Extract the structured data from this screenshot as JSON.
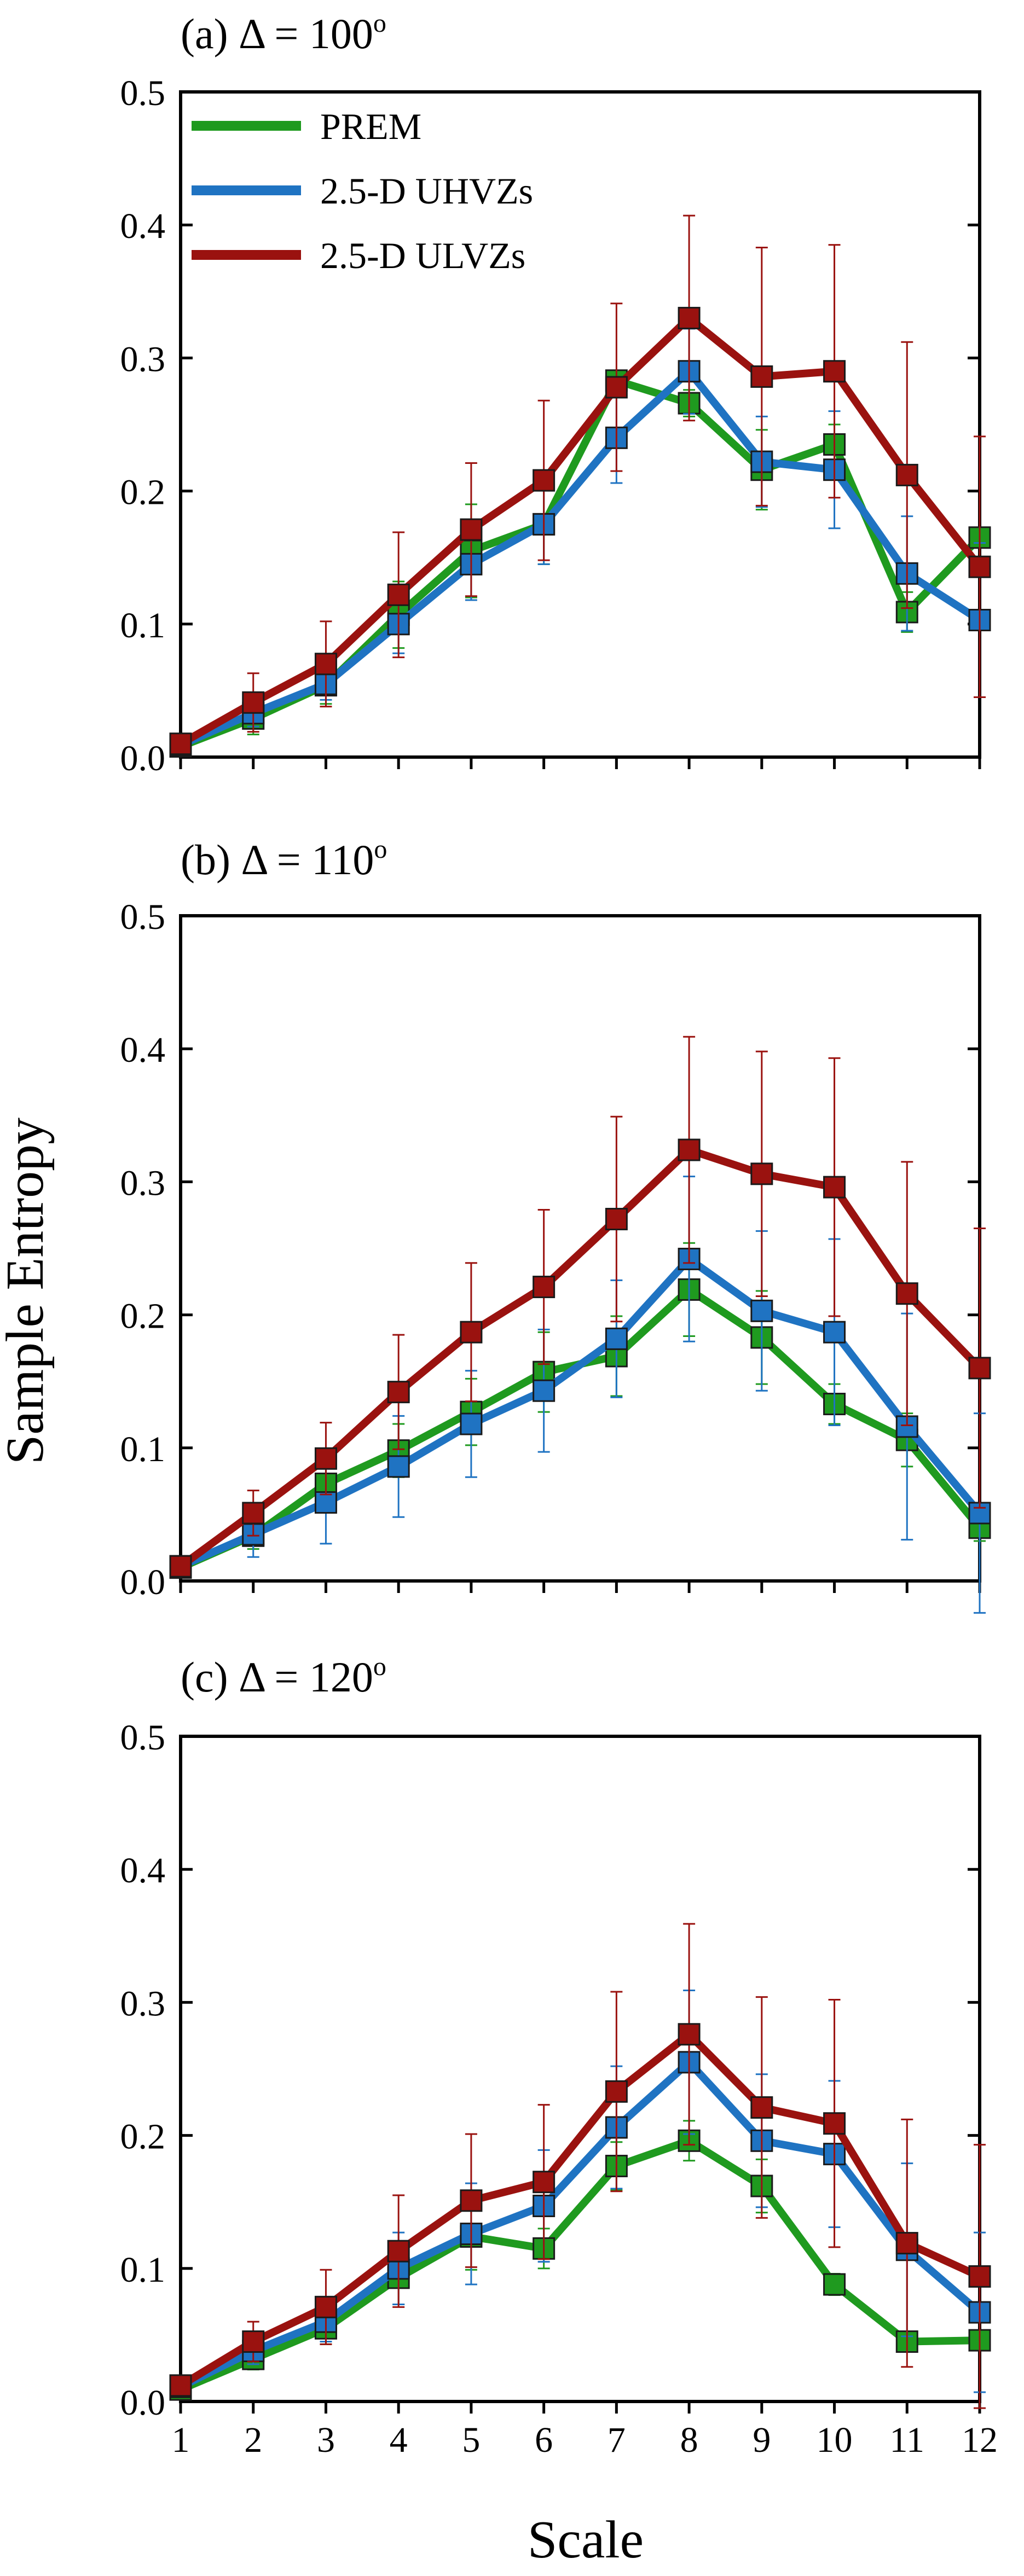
{
  "figure": {
    "ylabel": "Sample Entropy",
    "xlabel": "Scale",
    "x_ticks": [
      "1",
      "2",
      "3",
      "4",
      "5",
      "6",
      "7",
      "8",
      "9",
      "10",
      "11",
      "12"
    ]
  },
  "colors": {
    "PREM": "#1f9a1f",
    "2.5-D UHVZs": "#1f73c2",
    "2.5-D ULVZs": "#9a120f"
  },
  "chart_data": [
    {
      "type": "line",
      "title_prefix": "(a) Δ = 100",
      "title_sup": "o",
      "xlabel": "Scale",
      "ylabel": "Sample Entropy",
      "xlim": [
        1,
        12
      ],
      "ylim": [
        0,
        0.5
      ],
      "y_ticks": [
        "0.0",
        "0.1",
        "0.2",
        "0.3",
        "0.4",
        "0.5"
      ],
      "legend": {
        "position": "top-left",
        "entries": [
          "PREM",
          "2.5-D UHVZs",
          "2.5-D ULVZs"
        ]
      },
      "x": [
        1,
        2,
        3,
        4,
        5,
        6,
        7,
        8,
        9,
        10,
        11,
        12
      ],
      "series": [
        {
          "name": "PREM",
          "values": [
            0.008,
            0.029,
            0.054,
            0.107,
            0.155,
            0.175,
            0.283,
            0.266,
            0.216,
            0.235,
            0.109,
            0.165
          ],
          "err": [
            0.003,
            0.012,
            0.014,
            0.025,
            0.035,
            0.03,
            0.0,
            0.01,
            0.03,
            0.015,
            0.015,
            0.0
          ]
        },
        {
          "name": "2.5-D UHVZs",
          "values": [
            0.009,
            0.033,
            0.055,
            0.1,
            0.145,
            0.175,
            0.24,
            0.29,
            0.222,
            0.216,
            0.138,
            0.103
          ],
          "err": [
            0.003,
            0.01,
            0.012,
            0.022,
            0.027,
            0.03,
            0.034,
            0.032,
            0.034,
            0.044,
            0.043,
            0.058
          ]
        },
        {
          "name": "2.5-D ULVZs",
          "values": [
            0.01,
            0.041,
            0.07,
            0.122,
            0.171,
            0.208,
            0.278,
            0.33,
            0.286,
            0.29,
            0.212,
            0.143
          ],
          "err": [
            0.003,
            0.022,
            0.032,
            0.047,
            0.05,
            0.06,
            0.063,
            0.077,
            0.097,
            0.095,
            0.1,
            0.098
          ]
        }
      ]
    },
    {
      "type": "line",
      "title_prefix": "(b) Δ = 110",
      "title_sup": "o",
      "xlabel": "Scale",
      "ylabel": "Sample Entropy",
      "xlim": [
        1,
        12
      ],
      "ylim": [
        0,
        0.5
      ],
      "y_ticks": [
        "0.0",
        "0.1",
        "0.2",
        "0.3",
        "0.4",
        "0.5"
      ],
      "x": [
        1,
        2,
        3,
        4,
        5,
        6,
        7,
        8,
        9,
        10,
        11,
        12
      ],
      "series": [
        {
          "name": "PREM",
          "values": [
            0.01,
            0.034,
            0.073,
            0.098,
            0.127,
            0.157,
            0.169,
            0.219,
            0.183,
            0.133,
            0.106,
            0.04
          ],
          "err": [
            0.003,
            0.01,
            0.015,
            0.02,
            0.025,
            0.03,
            0.03,
            0.035,
            0.035,
            0.015,
            0.02,
            0.01
          ]
        },
        {
          "name": "2.5-D UHVZs",
          "values": [
            0.011,
            0.035,
            0.059,
            0.086,
            0.118,
            0.143,
            0.182,
            0.242,
            0.203,
            0.187,
            0.116,
            0.051
          ],
          "err": [
            0.003,
            0.017,
            0.031,
            0.038,
            0.04,
            0.046,
            0.044,
            0.062,
            0.06,
            0.07,
            0.085,
            0.075
          ]
        },
        {
          "name": "2.5-D ULVZs",
          "values": [
            0.011,
            0.051,
            0.092,
            0.142,
            0.187,
            0.221,
            0.272,
            0.324,
            0.306,
            0.296,
            0.216,
            0.16
          ],
          "err": [
            0.003,
            0.017,
            0.027,
            0.043,
            0.052,
            0.058,
            0.077,
            0.085,
            0.092,
            0.097,
            0.099,
            0.105
          ]
        }
      ]
    },
    {
      "type": "line",
      "title_prefix": "(c) Δ = 120",
      "title_sup": "o",
      "xlabel": "Scale",
      "ylabel": "Sample Entropy",
      "xlim": [
        1,
        12
      ],
      "ylim": [
        0,
        0.5
      ],
      "y_ticks": [
        "0.0",
        "0.1",
        "0.2",
        "0.3",
        "0.4",
        "0.5"
      ],
      "x": [
        1,
        2,
        3,
        4,
        5,
        6,
        7,
        8,
        9,
        10,
        11,
        12
      ],
      "series": [
        {
          "name": "PREM",
          "values": [
            0.009,
            0.032,
            0.055,
            0.093,
            0.124,
            0.115,
            0.177,
            0.196,
            0.162,
            0.088,
            0.045,
            0.046
          ],
          "err": [
            0.003,
            0.008,
            0.012,
            0.02,
            0.025,
            0.015,
            0.018,
            0.015,
            0.02,
            0.008,
            0.005,
            0.005
          ]
        },
        {
          "name": "2.5-D UHVZs",
          "values": [
            0.011,
            0.038,
            0.06,
            0.1,
            0.126,
            0.147,
            0.206,
            0.255,
            0.196,
            0.186,
            0.114,
            0.067
          ],
          "err": [
            0.003,
            0.01,
            0.015,
            0.027,
            0.038,
            0.042,
            0.046,
            0.054,
            0.05,
            0.055,
            0.065,
            0.06
          ]
        },
        {
          "name": "2.5-D ULVZs",
          "values": [
            0.012,
            0.045,
            0.071,
            0.113,
            0.151,
            0.165,
            0.233,
            0.276,
            0.221,
            0.209,
            0.119,
            0.094
          ],
          "err": [
            0.003,
            0.015,
            0.028,
            0.042,
            0.05,
            0.058,
            0.075,
            0.083,
            0.083,
            0.093,
            0.093,
            0.099
          ]
        }
      ]
    }
  ]
}
